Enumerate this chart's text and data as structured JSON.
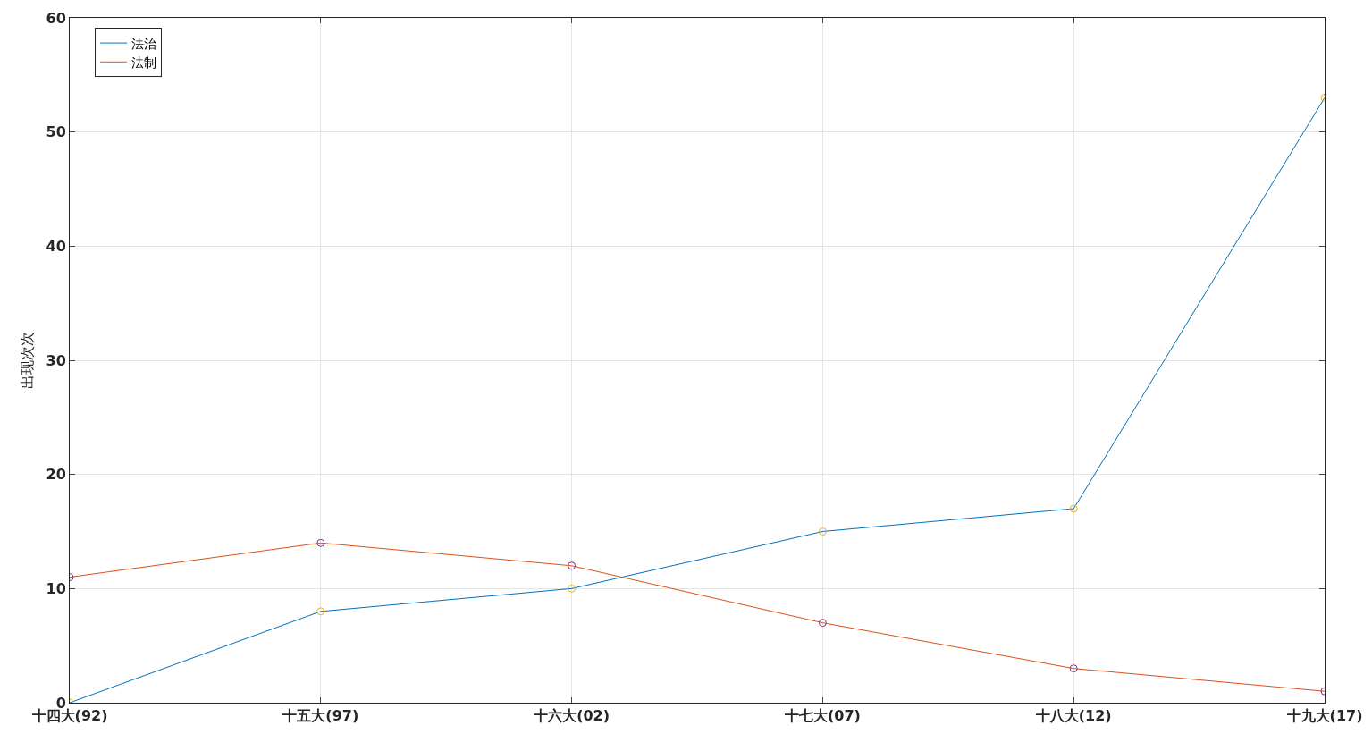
{
  "chart_data": {
    "type": "line",
    "ylabel": "出现次次",
    "categories": [
      "十四大(92)",
      "十五大(97)",
      "十六大(02)",
      "十七大(07)",
      "十八大(12)",
      "十九大(17)"
    ],
    "series": [
      {
        "name": "法治",
        "color": "#0072bd",
        "values": [
          0,
          8,
          10,
          15,
          17,
          53
        ]
      },
      {
        "name": "法制",
        "color": "#d95319",
        "values": [
          11,
          14,
          12,
          7,
          3,
          1
        ]
      },
      {
        "type": "scatter",
        "marker": "circle",
        "color": "#edb120",
        "values": [
          0,
          8,
          10,
          15,
          17,
          53
        ]
      },
      {
        "type": "scatter",
        "marker": "circle",
        "color": "#7e2f8e",
        "values": [
          11,
          14,
          12,
          7,
          3,
          1
        ]
      }
    ],
    "ylim": [
      0,
      60
    ],
    "yticks": [
      0,
      10,
      20,
      30,
      40,
      50,
      60
    ],
    "grid": true,
    "legend": "top left",
    "line_style": "solid"
  }
}
